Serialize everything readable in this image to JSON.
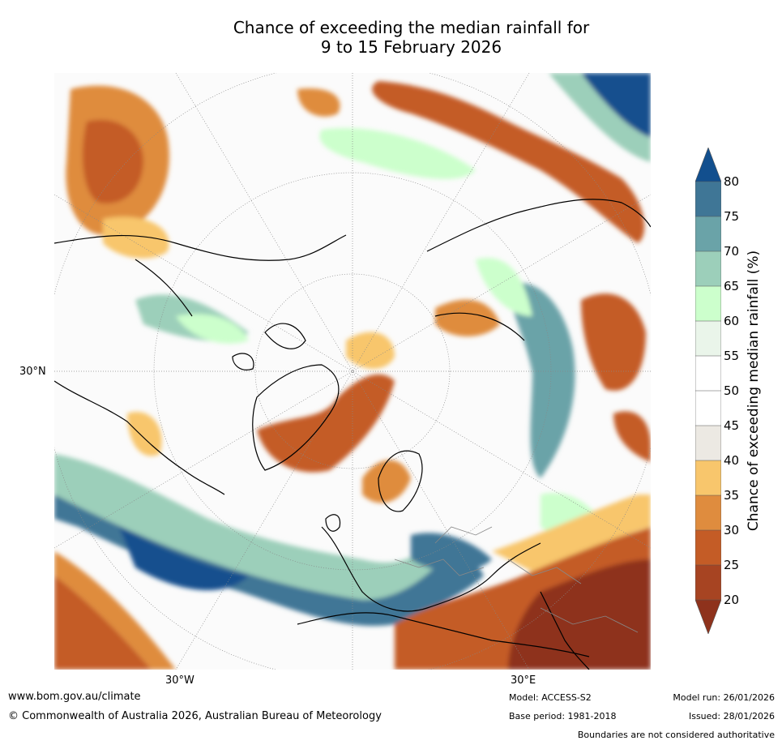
{
  "title": {
    "line1": "Chance of exceeding the median rainfall for",
    "line2": "9 to 15 February 2026"
  },
  "map": {
    "lat_label": "30°N",
    "lon_labels": {
      "west": "30°W",
      "east": "30°E"
    }
  },
  "colorbar": {
    "label": "Chance of exceeding median rainfall (%)",
    "ticks": [
      "80",
      "75",
      "70",
      "65",
      "60",
      "55",
      "50",
      "45",
      "40",
      "35",
      "30",
      "25",
      "20"
    ],
    "colors": {
      "gt80": "#124f8e",
      "75_80": "#3f7696",
      "70_75": "#6aa3a8",
      "65_70": "#9ccfba",
      "60_65": "#ccffcc",
      "55_60": "#eaf5ea",
      "50_55": "#ffffff",
      "45_50": "#ffffff",
      "40_45": "#ece9e3",
      "35_40": "#f8c66c",
      "30_35": "#df8c3e",
      "25_30": "#c45c26",
      "20_25": "#a74422",
      "lt20": "#8e321c"
    }
  },
  "footer": {
    "url": "www.bom.gov.au/climate",
    "copyright": "© Commonwealth of Australia 2026, Australian Bureau of Meteorology",
    "model": "Model: ACCESS-S2",
    "base_period": "Base period: 1981-2018",
    "model_run": "Model run: 26/01/2026",
    "issued": "Issued: 28/01/2026",
    "boundaries": "Boundaries are not considered authoritative"
  }
}
